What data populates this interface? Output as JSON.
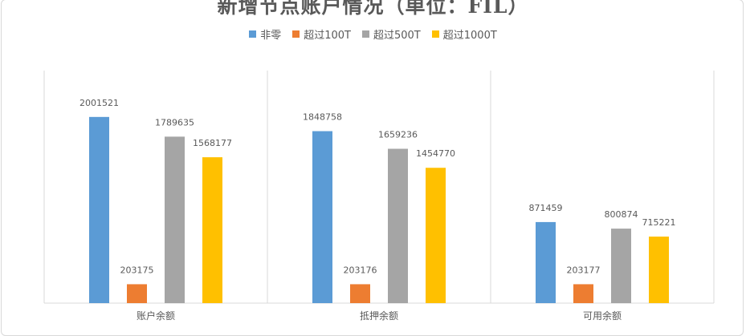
{
  "chart_data": {
    "type": "bar",
    "title": "新增节点账户情况（单位：FIL）",
    "categories": [
      "账户余额",
      "抵押余额",
      "可用余额"
    ],
    "series": [
      {
        "name": "非零",
        "color": "#5b9bd5",
        "values": [
          2001521,
          1848758,
          871459
        ]
      },
      {
        "name": "超过100T",
        "color": "#ed7d31",
        "values": [
          203175,
          203176,
          203177
        ]
      },
      {
        "name": "超过500T",
        "color": "#a5a5a5",
        "values": [
          1789635,
          1659236,
          800874
        ]
      },
      {
        "name": "超过1000T",
        "color": "#ffc000",
        "values": [
          1568177,
          1454770,
          715221
        ]
      }
    ],
    "ylim": [
      0,
      2500000
    ],
    "grid": false,
    "legend_position": "top"
  }
}
